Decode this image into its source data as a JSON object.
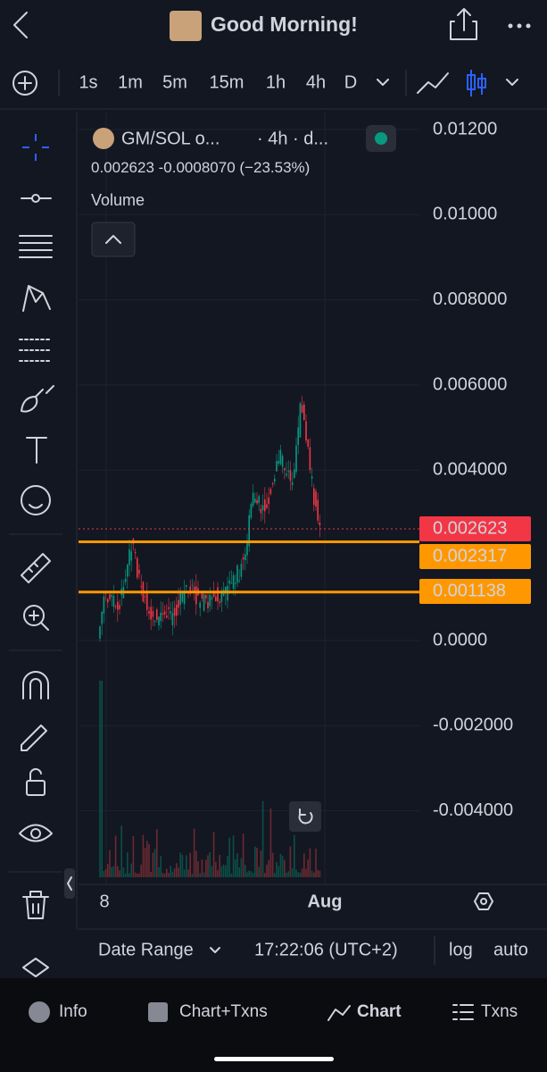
{
  "header": {
    "title": "Good Morning!"
  },
  "toolbar": {
    "intervals": [
      "1s",
      "1m",
      "5m",
      "15m",
      "1h",
      "4h",
      "D"
    ],
    "active_interval": "4h"
  },
  "legend": {
    "symbol": "GM/SOL o...",
    "meta": "· 4h · d...",
    "price": "0.002623",
    "change": "-0.0008070",
    "change_pct": "(−23.53%)",
    "volume": "Volume"
  },
  "price_axis": {
    "ticks": [
      {
        "value": 0.012,
        "label": "0.01200"
      },
      {
        "value": 0.01,
        "label": "0.01000"
      },
      {
        "value": 0.008,
        "label": "0.008000"
      },
      {
        "value": 0.006,
        "label": "0.006000"
      },
      {
        "value": 0.004,
        "label": "0.004000"
      },
      {
        "value": 0,
        "label": "0.0000"
      },
      {
        "value": -0.002,
        "label": "-0.002000"
      },
      {
        "value": -0.004,
        "label": "-0.004000"
      }
    ]
  },
  "price_tags": [
    {
      "value": 0.002623,
      "label": "0.002623",
      "color": "#f23645"
    },
    {
      "value": 0.002317,
      "label": "0.002317",
      "color": "#ff9800"
    },
    {
      "value": 0.001138,
      "label": "0.001138",
      "color": "#ff9800"
    }
  ],
  "time_axis": {
    "labels": [
      "8",
      "Aug"
    ]
  },
  "footer": {
    "date_range": "Date Range",
    "time": "17:22:06 (UTC+2)",
    "log": "log",
    "auto": "auto"
  },
  "tabs": [
    "Info",
    "Chart+Txns",
    "Chart",
    "Txns"
  ]
}
